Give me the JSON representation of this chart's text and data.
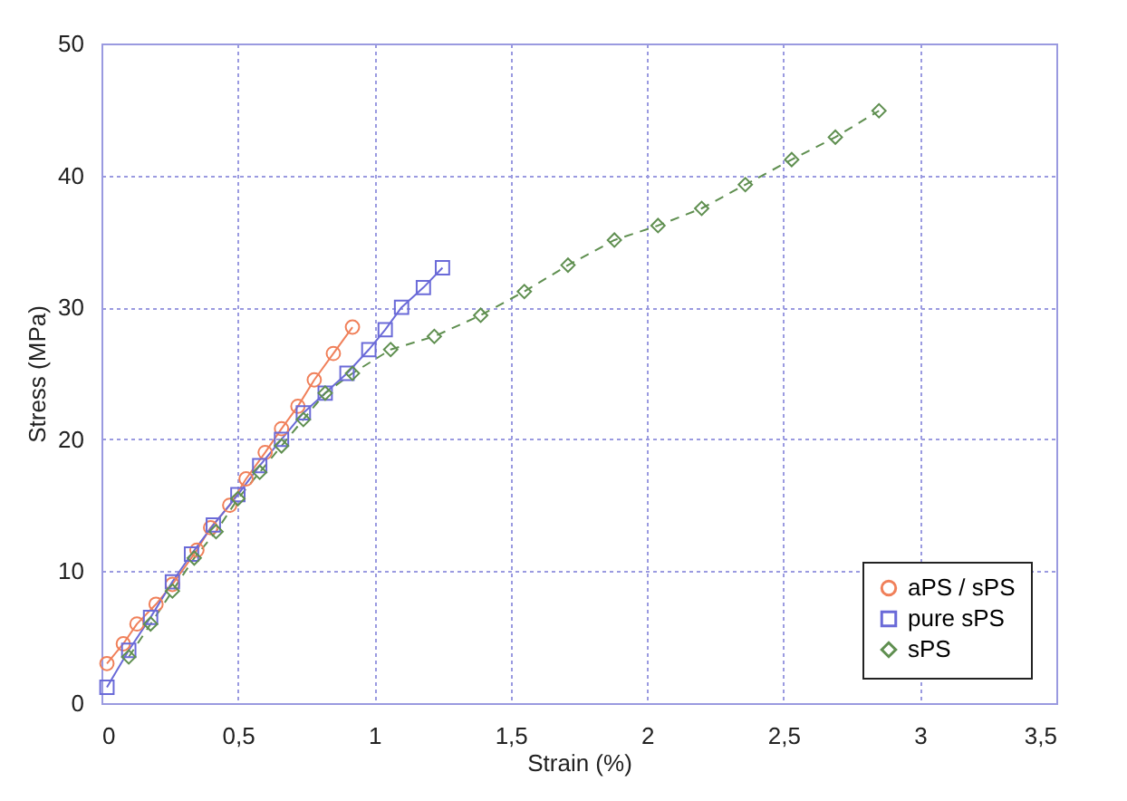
{
  "chart_data": {
    "type": "line",
    "xlabel": "Strain (%)",
    "ylabel": "Stress (MPa)",
    "xlim": [
      0,
      3.5
    ],
    "xticks": [
      0,
      {
        "value": 0.5,
        "label": "0,5"
      },
      1,
      {
        "value": 1.5,
        "label": "1,5"
      },
      2,
      {
        "value": 2.5,
        "label": "2,5"
      },
      3,
      {
        "value": 3.5,
        "label": "3,5"
      }
    ],
    "ylim": [
      0,
      50
    ],
    "yticks": [
      0,
      10,
      20,
      30,
      40,
      50
    ],
    "grid": true,
    "legend": "bottom right",
    "series": [
      {
        "name": "aPS / sPS",
        "color": "#f0805a",
        "marker": "circle",
        "line_style": "solid",
        "x": [
          0.02,
          0.08,
          0.13,
          0.2,
          0.26,
          0.35,
          0.4,
          0.47,
          0.53,
          0.6,
          0.66,
          0.72,
          0.78,
          0.85,
          0.92
        ],
        "values": [
          3,
          4.5,
          6,
          7.5,
          9,
          11.6,
          13.3,
          15,
          17,
          19,
          20.8,
          22.5,
          24.5,
          26.5,
          28.5
        ]
      },
      {
        "name": "pure sPS",
        "color": "#6a6ad8",
        "marker": "square",
        "line_style": "solid",
        "x": [
          0.02,
          0.1,
          0.18,
          0.26,
          0.33,
          0.41,
          0.5,
          0.58,
          0.66,
          0.74,
          0.82,
          0.9,
          0.98,
          1.04,
          1.1,
          1.18,
          1.25
        ],
        "values": [
          1.2,
          4,
          6.5,
          9.2,
          11.3,
          13.5,
          15.8,
          18,
          20,
          22,
          23.5,
          25,
          26.8,
          28.3,
          30,
          31.5,
          33
        ]
      },
      {
        "name": "sPS",
        "color": "#5f8f50",
        "marker": "diamond",
        "line_style": "dashed",
        "x": [
          0.1,
          0.18,
          0.26,
          0.34,
          0.42,
          0.5,
          0.58,
          0.66,
          0.74,
          0.82,
          0.92,
          1.06,
          1.22,
          1.39,
          1.55,
          1.71,
          1.88,
          2.04,
          2.2,
          2.36,
          2.53,
          2.69,
          2.85
        ],
        "values": [
          3.5,
          6,
          8.5,
          11,
          13,
          15.5,
          17.5,
          19.5,
          21.5,
          23.5,
          25,
          26.8,
          27.8,
          29.4,
          31.2,
          33.2,
          35.1,
          36.2,
          37.5,
          39.3,
          41.2,
          42.9,
          44.9
        ]
      }
    ]
  }
}
